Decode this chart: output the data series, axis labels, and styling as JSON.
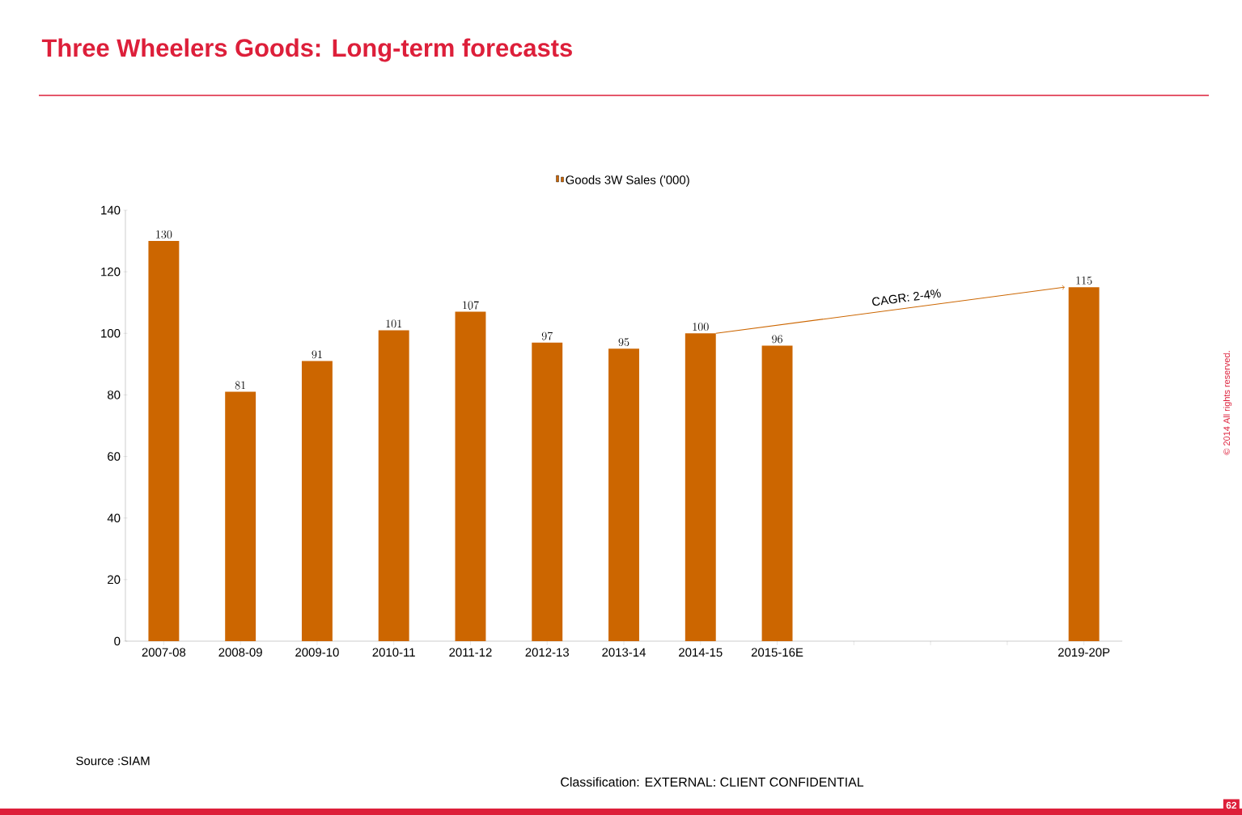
{
  "chart_data": {
    "type": "bar",
    "title": "Three Wheelers Goods: Long-term forecasts",
    "categories": [
      "2007-08",
      "2008-09",
      "2009-10",
      "2010-11",
      "2011-12",
      "2012-13",
      "2013-14",
      "2014-15",
      "2015-16E",
      null,
      null,
      null,
      "2019-20P"
    ],
    "series": [
      {
        "name": "Goods 3W Sales ('000)",
        "color": "#cc6600",
        "values": [
          130,
          81,
          91,
          101,
          107,
          97,
          95,
          100,
          96,
          null,
          null,
          null,
          115
        ]
      }
    ],
    "ylim": [
      0,
      140
    ],
    "yticks": [
      0,
      20,
      40,
      60,
      80,
      100,
      120,
      140
    ],
    "data_labels": true,
    "legend": "top",
    "grid": false,
    "annotations": [
      "CAGR: 2-4%",
      "Source :SIAM",
      "Classification: EXTERNAL: CLIENT CONFIDENTIAL",
      "© 2014 All rights reserved.",
      "62"
    ]
  }
}
